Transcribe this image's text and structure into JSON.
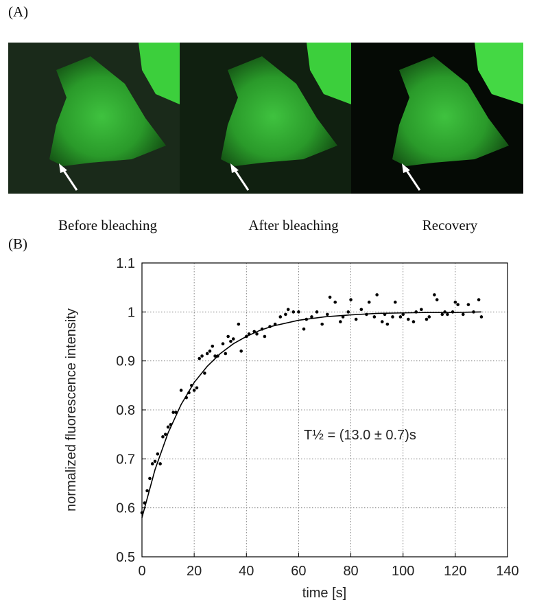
{
  "figure": {
    "panel_a_label": "(A)",
    "captions": [
      "Before bleaching",
      "After bleaching",
      "Recovery"
    ],
    "panel_b_label": "(B)"
  },
  "chart_data": {
    "type": "scatter",
    "xlabel": "time [s]",
    "ylabel": "normalized fluorescence intensity",
    "annotation": "T½ = (13.0 ± 0.7)s",
    "xlim": [
      0,
      140
    ],
    "xticks": [
      0,
      20,
      40,
      60,
      80,
      100,
      120,
      140
    ],
    "ylim": [
      0.5,
      1.1
    ],
    "yticks": [
      0.5,
      0.6,
      0.7,
      0.8,
      0.9,
      1,
      1.1
    ],
    "grid": true,
    "series": [
      {
        "type": "scatter",
        "color": "#000000",
        "x": [
          0,
          1,
          2,
          3,
          4,
          5,
          6,
          7,
          8,
          9,
          10,
          11,
          12,
          13,
          15,
          17,
          18,
          19,
          20,
          21,
          22,
          23,
          24,
          25,
          26,
          27,
          28,
          29,
          31,
          32,
          33,
          34,
          35,
          37,
          38,
          40,
          41,
          43,
          44,
          46,
          47,
          49,
          51,
          53,
          55,
          56,
          58,
          60,
          62,
          63,
          65,
          67,
          69,
          71,
          72,
          74,
          76,
          77,
          79,
          80,
          82,
          84,
          86,
          87,
          89,
          90,
          92,
          93,
          94,
          96,
          97,
          99,
          100,
          102,
          104,
          105,
          107,
          109,
          110,
          112,
          113,
          115,
          116,
          117,
          119,
          120,
          121,
          123,
          125,
          127,
          129,
          130
        ],
        "values": [
          0.59,
          0.61,
          0.635,
          0.66,
          0.69,
          0.695,
          0.71,
          0.69,
          0.745,
          0.75,
          0.765,
          0.77,
          0.795,
          0.795,
          0.84,
          0.825,
          0.835,
          0.85,
          0.84,
          0.845,
          0.905,
          0.91,
          0.875,
          0.915,
          0.92,
          0.93,
          0.91,
          0.91,
          0.935,
          0.915,
          0.95,
          0.94,
          0.945,
          0.975,
          0.92,
          0.95,
          0.955,
          0.96,
          0.955,
          0.965,
          0.95,
          0.97,
          0.975,
          0.99,
          0.995,
          1.005,
          1.0,
          1.0,
          0.965,
          0.985,
          0.99,
          1.0,
          0.975,
          0.995,
          1.03,
          1.02,
          0.98,
          0.99,
          1.0,
          1.025,
          0.985,
          1.005,
          0.995,
          1.02,
          0.99,
          1.035,
          0.98,
          0.995,
          0.975,
          0.99,
          1.02,
          0.99,
          0.995,
          0.985,
          0.98,
          1.0,
          1.005,
          0.985,
          0.99,
          1.035,
          1.025,
          0.995,
          1.0,
          0.995,
          1.0,
          1.02,
          1.015,
          0.995,
          1.015,
          1.0,
          1.025,
          0.99
        ]
      },
      {
        "type": "line",
        "color": "#000000",
        "x": [
          0,
          5,
          10,
          15,
          20,
          25,
          30,
          35,
          40,
          45,
          50,
          60,
          70,
          80,
          90,
          100,
          110,
          120,
          130
        ],
        "values": [
          0.58,
          0.678,
          0.753,
          0.811,
          0.856,
          0.889,
          0.915,
          0.935,
          0.95,
          0.962,
          0.971,
          0.983,
          0.99,
          0.994,
          0.997,
          0.998,
          0.999,
          0.999,
          1.0
        ]
      }
    ]
  }
}
